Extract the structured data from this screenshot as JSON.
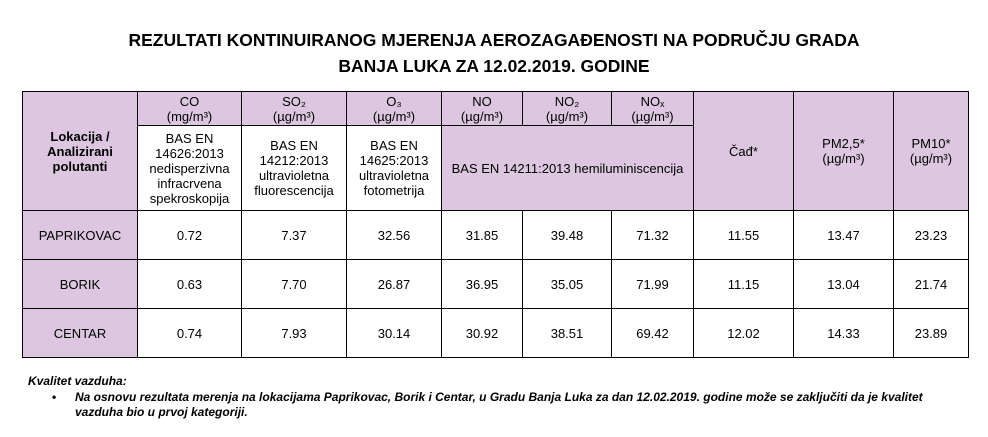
{
  "header": {
    "title_line1": "REZULTATI KONTINUIRANOG MJERENJA AEROZAGAĐENOSTI NA PODRUČJU GRADA",
    "title_line2": "BANJA LUKA ZA 12.02.2019. GODINE"
  },
  "table": {
    "corner": "Lokacija / Analizirani polutanti",
    "pollutants": [
      {
        "name": "CO",
        "unit": "(mg/m³)",
        "method": "BAS EN 14626:2013 nedisperzivna infracrvena spekroskopija"
      },
      {
        "name": "SO₂",
        "unit": "(µg/m³)",
        "method": "BAS EN 14212:2013 ultravioletna fluorescencija"
      },
      {
        "name": "O₃",
        "unit": "(µg/m³)",
        "method": "BAS EN 14625:2013 ultravioletna fotometrija"
      },
      {
        "name": "NO",
        "unit": "(µg/m³)"
      },
      {
        "name": "NO₂",
        "unit": "(µg/m³)"
      },
      {
        "name": "NOₓ",
        "unit": "(µg/m³)"
      }
    ],
    "shared_method": "BAS EN 14211:2013 hemiluminiscencija",
    "extra_columns": [
      {
        "name": "Čađ*"
      },
      {
        "name": "PM2,5*",
        "unit": "(µg/m³)"
      },
      {
        "name": "PM10*",
        "unit": "(µg/m³)"
      }
    ],
    "rows": [
      [
        "PAPRIKOVAC",
        "0.72",
        "7.37",
        "32.56",
        "31.85",
        "39.48",
        "71.32",
        "11.55",
        "13.47",
        "23.23"
      ],
      [
        "BORIK",
        "0.63",
        "7.70",
        "26.87",
        "36.95",
        "35.05",
        "71.99",
        "11.15",
        "13.04",
        "21.74"
      ],
      [
        "CENTAR",
        "0.74",
        "7.93",
        "30.14",
        "30.92",
        "38.51",
        "69.42",
        "12.02",
        "14.33",
        "23.89"
      ]
    ]
  },
  "footer": {
    "heading": "Kvalitet vazduha:",
    "bullet": "Na osnovu rezultata merenja na lokacijama Paprikovac, Borik i Centar, u Gradu Banja Luka za dan 12.02.2019. godine može se zaključiti da je kvalitet vazduha bio u prvoj kategoriji."
  }
}
